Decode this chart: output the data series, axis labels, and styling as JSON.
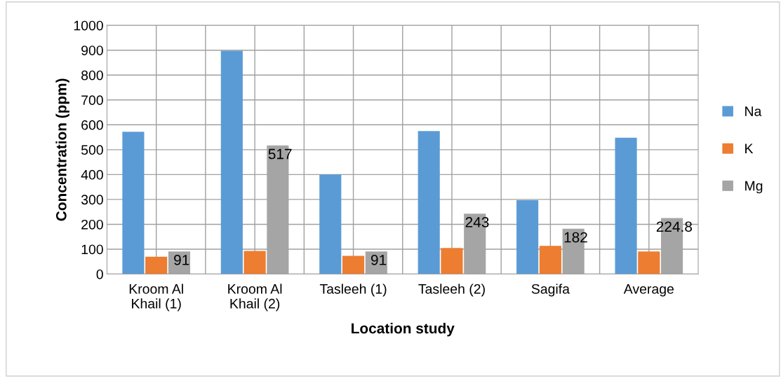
{
  "chart_data": {
    "type": "bar",
    "xlabel": "Location study",
    "ylabel": "Concentration (ppm)",
    "categories": [
      "Kroom Al\nKhail (1)",
      "Kroom Al\nKhail (2)",
      "Tasleeh (1)",
      "Tasleeh (2)",
      "Sagifa",
      "Average"
    ],
    "series": [
      {
        "name": "Na",
        "color": "#5b9bd5",
        "values": [
          572,
          898,
          400,
          575,
          297,
          548
        ]
      },
      {
        "name": "K",
        "color": "#ed7d31",
        "values": [
          70,
          93,
          73,
          105,
          113,
          91
        ]
      },
      {
        "name": "Mg",
        "color": "#a5a5a5",
        "values": [
          91,
          517,
          91,
          243,
          182,
          224.8
        ],
        "value_labels": [
          "91",
          "517",
          "91",
          "243",
          "182",
          "224.8"
        ]
      }
    ],
    "ylim": [
      0,
      1000
    ],
    "yticks": [
      0,
      100,
      200,
      300,
      400,
      500,
      600,
      700,
      800,
      900,
      1000
    ],
    "grid": true,
    "legend": "right"
  }
}
